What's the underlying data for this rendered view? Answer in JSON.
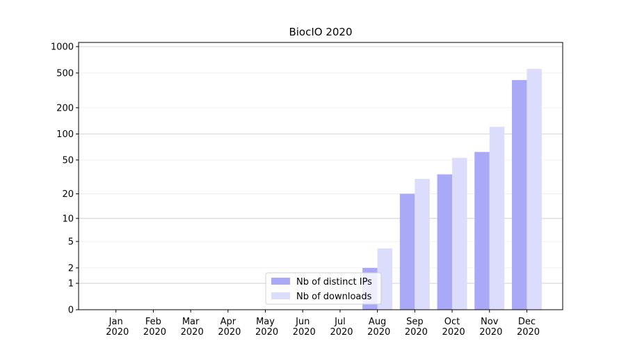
{
  "chart_data": {
    "type": "bar",
    "title": "BiocIO 2020",
    "categories": [
      "Jan 2020",
      "Feb 2020",
      "Mar 2020",
      "Apr 2020",
      "May 2020",
      "Jun 2020",
      "Jul 2020",
      "Aug 2020",
      "Sep 2020",
      "Oct 2020",
      "Nov 2020",
      "Dec 2020"
    ],
    "series": [
      {
        "name": "Nb of distinct IPs",
        "color": "#a9a9f8",
        "values": [
          0,
          0,
          0,
          0,
          0,
          0,
          0,
          2,
          20,
          34,
          62,
          415
        ]
      },
      {
        "name": "Nb of downloads",
        "color": "#dcdcfc",
        "values": [
          0,
          0,
          0,
          0,
          0,
          0,
          0,
          4,
          30,
          53,
          121,
          556
        ]
      }
    ],
    "yscale": "log1p",
    "ylim": [
      0,
      1116
    ],
    "yticks": [
      0,
      1,
      2,
      5,
      10,
      20,
      50,
      100,
      200,
      500,
      1000
    ],
    "grid": true,
    "legend": "lower center"
  }
}
